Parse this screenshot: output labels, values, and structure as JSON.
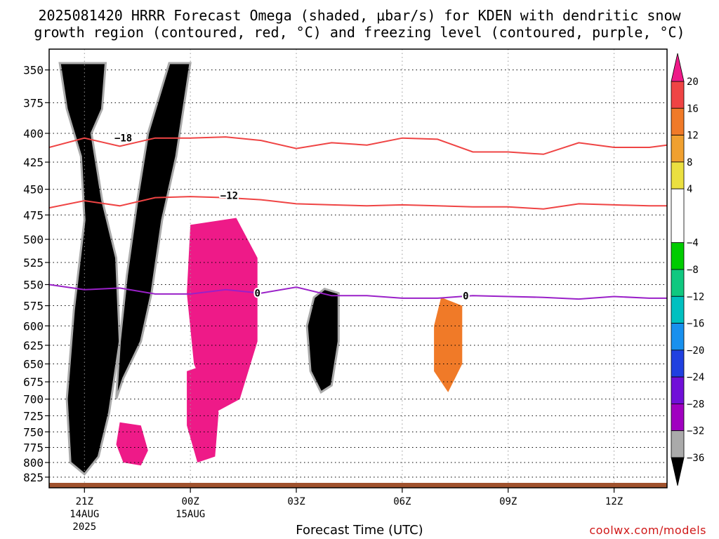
{
  "title_line1": "2025081420 HRRR Forecast Omega (shaded, μbar/s) for KDEN with dendritic snow",
  "title_line2": "growth region (contoured, red, °C) and freezing level (contoured, purple, °C)",
  "credit": "coolwx.com/models",
  "chart_data": {
    "type": "heatmap",
    "title": "2025081420 HRRR Forecast Omega (shaded, μbar/s) for KDEN with dendritic snow growth region (contoured, red, °C) and freezing level (contoured, purple, °C)",
    "xlabel": "Forecast Time (UTC)",
    "ylabel": "",
    "x_range_hours_utc": [
      20,
      37.5
    ],
    "y_range_hpa": [
      335,
      835
    ],
    "y_scale": "log-pressure (inverted)",
    "grid": true,
    "y_ticks": [
      350,
      375,
      400,
      425,
      450,
      475,
      500,
      525,
      550,
      575,
      600,
      625,
      650,
      675,
      700,
      725,
      750,
      775,
      800,
      825
    ],
    "x_ticks": [
      {
        "hour": 21,
        "label": "21Z",
        "date": "14AUG",
        "year": "2025"
      },
      {
        "hour": 24,
        "label": "00Z",
        "date": "15AUG",
        "year": ""
      },
      {
        "hour": 27,
        "label": "03Z",
        "date": "",
        "year": ""
      },
      {
        "hour": 30,
        "label": "06Z",
        "date": "",
        "year": ""
      },
      {
        "hour": 33,
        "label": "09Z",
        "date": "",
        "year": ""
      },
      {
        "hour": 36,
        "label": "12Z",
        "date": "",
        "year": ""
      }
    ],
    "colorbar": {
      "labels": [
        "20",
        "16",
        "12",
        "8",
        "4",
        "−4",
        "−8",
        "−12",
        "−16",
        "−20",
        "−24",
        "−28",
        "−32",
        "−36"
      ],
      "bands": [
        {
          "from": 16,
          "to": 20,
          "color": "#ef4444"
        },
        {
          "from": 12,
          "to": 16,
          "color": "#f07a28"
        },
        {
          "from": 8,
          "to": 12,
          "color": "#f0a030"
        },
        {
          "from": 4,
          "to": 8,
          "color": "#ebe040"
        },
        {
          "from": -4,
          "to": 4,
          "color": "#ffffff"
        },
        {
          "from": -8,
          "to": -4,
          "color": "#00cc00"
        },
        {
          "from": -12,
          "to": -8,
          "color": "#10c880"
        },
        {
          "from": -16,
          "to": -12,
          "color": "#00c0c0"
        },
        {
          "from": -20,
          "to": -16,
          "color": "#1890ee"
        },
        {
          "from": -24,
          "to": -20,
          "color": "#2040e0"
        },
        {
          "from": -28,
          "to": -24,
          "color": "#7010d8"
        },
        {
          "from": -32,
          "to": -28,
          "color": "#a000c0"
        },
        {
          "from": -36,
          "to": -32,
          "color": "#aaaaaa"
        }
      ],
      "max_arrow_color": "#ee1a88",
      "min_arrow_color": "#000000"
    },
    "contours": [
      {
        "name": "dendritic snow growth -18°C",
        "label": "−18",
        "color": "#ef4444",
        "points": [
          [
            20,
            412
          ],
          [
            21,
            404
          ],
          [
            22,
            411
          ],
          [
            23,
            404
          ],
          [
            24,
            404
          ],
          [
            25,
            403
          ],
          [
            26,
            406
          ],
          [
            27,
            413
          ],
          [
            28,
            408
          ],
          [
            29,
            410
          ],
          [
            30,
            404
          ],
          [
            31,
            405
          ],
          [
            32,
            416
          ],
          [
            33,
            416
          ],
          [
            34,
            418
          ],
          [
            35,
            408
          ],
          [
            36,
            412
          ],
          [
            37,
            412
          ],
          [
            37.5,
            410
          ]
        ]
      },
      {
        "name": "dendritic snow growth -12°C",
        "label": "−12",
        "color": "#ef4444",
        "points": [
          [
            20,
            468
          ],
          [
            21,
            461
          ],
          [
            22,
            466
          ],
          [
            23,
            458
          ],
          [
            24,
            457
          ],
          [
            25,
            458
          ],
          [
            26,
            460
          ],
          [
            27,
            464
          ],
          [
            28,
            465
          ],
          [
            29,
            466
          ],
          [
            30,
            465
          ],
          [
            31,
            466
          ],
          [
            32,
            467
          ],
          [
            33,
            467
          ],
          [
            34,
            469
          ],
          [
            35,
            464
          ],
          [
            36,
            465
          ],
          [
            37,
            466
          ],
          [
            37.5,
            466
          ]
        ]
      },
      {
        "name": "freezing level 0°C",
        "label": "0",
        "color": "#9a20c8",
        "points": [
          [
            20,
            550
          ],
          [
            21,
            556
          ],
          [
            22,
            554
          ],
          [
            23,
            561
          ],
          [
            24,
            561
          ],
          [
            25,
            556
          ],
          [
            26,
            560
          ],
          [
            27,
            553
          ],
          [
            28,
            563
          ],
          [
            29,
            563
          ],
          [
            30,
            566
          ],
          [
            31,
            566
          ],
          [
            32,
            563
          ],
          [
            33,
            564
          ],
          [
            34,
            565
          ],
          [
            35,
            567
          ],
          [
            36,
            564
          ],
          [
            37,
            566
          ],
          [
            37.5,
            566
          ]
        ]
      }
    ],
    "contour_labels": [
      {
        "text": "−18",
        "hour": 22.1,
        "hpa": 404
      },
      {
        "text": "−12",
        "hour": 25.1,
        "hpa": 456
      },
      {
        "text": "0",
        "hour": 25.9,
        "hpa": 560
      },
      {
        "text": "0",
        "hour": 31.8,
        "hpa": 563
      }
    ],
    "shaded_regions": [
      {
        "name": "strong-ascent-core-west",
        "color": "#000000",
        "outline": "#aaaaaa",
        "points": [
          [
            20.3,
            345
          ],
          [
            21.6,
            345
          ],
          [
            21.5,
            380
          ],
          [
            21.2,
            400
          ],
          [
            21.5,
            460
          ],
          [
            21.9,
            520
          ],
          [
            22.0,
            620
          ],
          [
            21.7,
            720
          ],
          [
            21.4,
            790
          ],
          [
            21.0,
            820
          ],
          [
            20.6,
            800
          ],
          [
            20.5,
            700
          ],
          [
            20.7,
            580
          ],
          [
            21.0,
            480
          ],
          [
            20.9,
            420
          ],
          [
            20.5,
            380
          ]
        ]
      },
      {
        "name": "strong-ascent-core-east",
        "color": "#000000",
        "outline": "#aaaaaa",
        "points": [
          [
            23.4,
            345
          ],
          [
            24.0,
            345
          ],
          [
            23.6,
            420
          ],
          [
            23.2,
            480
          ],
          [
            22.9,
            560
          ],
          [
            22.6,
            620
          ],
          [
            22.1,
            670
          ],
          [
            21.9,
            700
          ],
          [
            22.0,
            620
          ],
          [
            22.2,
            540
          ],
          [
            22.5,
            460
          ],
          [
            22.8,
            400
          ]
        ]
      },
      {
        "name": "ascent-core-03z",
        "color": "#000000",
        "outline": "#aaaaaa",
        "points": [
          [
            27.8,
            555
          ],
          [
            28.2,
            560
          ],
          [
            28.2,
            620
          ],
          [
            28.0,
            680
          ],
          [
            27.7,
            690
          ],
          [
            27.4,
            660
          ],
          [
            27.3,
            600
          ],
          [
            27.5,
            565
          ]
        ]
      },
      {
        "name": "descent-pink-central",
        "color": "#ee1a88",
        "points": [
          [
            24.0,
            485
          ],
          [
            25.3,
            478
          ],
          [
            25.9,
            520
          ],
          [
            25.9,
            620
          ],
          [
            25.4,
            700
          ],
          [
            24.7,
            720
          ],
          [
            24.1,
            650
          ],
          [
            23.9,
            560
          ]
        ]
      },
      {
        "name": "descent-pink-lower",
        "color": "#ee1a88",
        "points": [
          [
            23.9,
            660
          ],
          [
            24.5,
            650
          ],
          [
            24.8,
            720
          ],
          [
            24.7,
            790
          ],
          [
            24.2,
            800
          ],
          [
            23.9,
            740
          ]
        ]
      },
      {
        "name": "descent-pink-small",
        "color": "#ee1a88",
        "points": [
          [
            22.0,
            735
          ],
          [
            22.6,
            740
          ],
          [
            22.8,
            780
          ],
          [
            22.6,
            805
          ],
          [
            22.1,
            800
          ],
          [
            21.9,
            770
          ]
        ]
      },
      {
        "name": "descent-orange-0730z",
        "color": "#f07a28",
        "points": [
          [
            31.1,
            565
          ],
          [
            31.7,
            575
          ],
          [
            31.7,
            650
          ],
          [
            31.3,
            690
          ],
          [
            30.9,
            660
          ],
          [
            30.9,
            600
          ]
        ]
      }
    ]
  }
}
